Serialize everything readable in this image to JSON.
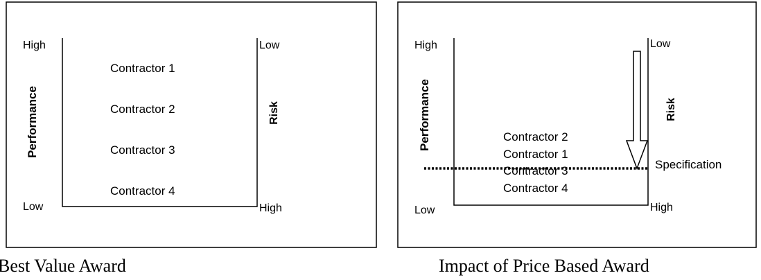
{
  "left_panel": {
    "caption": "Best Value Award",
    "y_axis_label": "Performance",
    "right_axis_label": "Risk",
    "left_top_label": "High",
    "left_bottom_label": "Low",
    "right_top_label": "Low",
    "right_bottom_label": "High",
    "contractors": [
      "Contractor 1",
      "Contractor 2",
      "Contractor 3",
      "Contractor 4"
    ]
  },
  "right_panel": {
    "caption": "Impact of Price Based Award",
    "y_axis_label": "Performance",
    "right_axis_label": "Risk",
    "left_top_label": "High",
    "left_bottom_label": "Low",
    "right_top_label": "Low",
    "right_bottom_label": "High",
    "contractors": [
      "Contractor 2",
      "Contractor 1",
      "Contractor 3",
      "Contractor 4"
    ],
    "specification_label": "Specification"
  }
}
